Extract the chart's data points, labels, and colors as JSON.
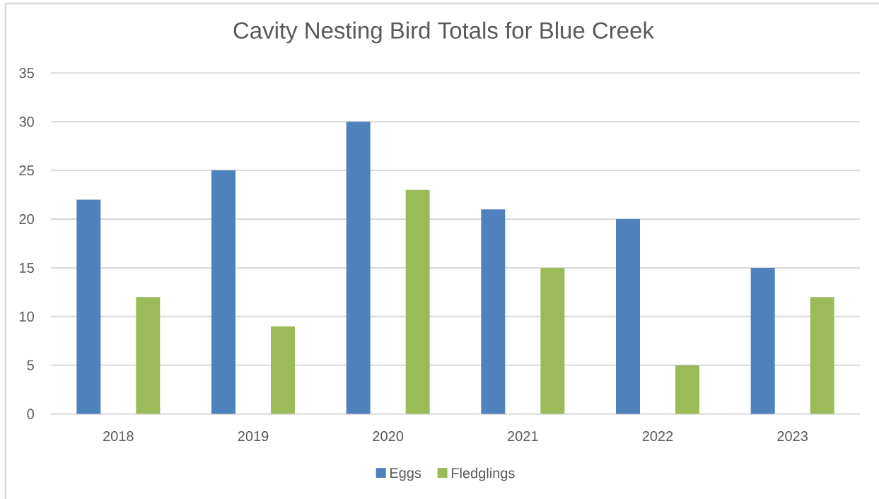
{
  "chart_data": {
    "type": "bar",
    "title": "Cavity Nesting Bird Totals for Blue Creek",
    "categories": [
      "2018",
      "2019",
      "2020",
      "2021",
      "2022",
      "2023"
    ],
    "series": [
      {
        "name": "Eggs",
        "color": "#4f81bd",
        "values": [
          22,
          25,
          30,
          21,
          20,
          15
        ]
      },
      {
        "name": "Fledglings",
        "color": "#9bbb59",
        "values": [
          12,
          9,
          23,
          15,
          5,
          12
        ]
      }
    ],
    "ylim": [
      0,
      35
    ],
    "yticks": [
      0,
      5,
      10,
      15,
      20,
      25,
      30,
      35
    ],
    "grid": "y",
    "legend": "bottom"
  }
}
